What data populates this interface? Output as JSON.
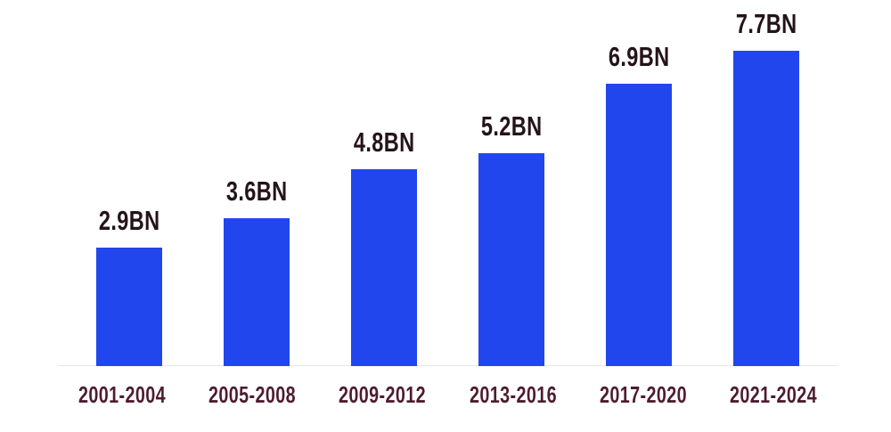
{
  "chart_data": {
    "type": "bar",
    "title": "",
    "categories": [
      "2001-2004",
      "2005-2008",
      "2009-2012",
      "2013-2016",
      "2017-2020",
      "2021-2024"
    ],
    "values": [
      2.9,
      3.6,
      4.8,
      5.2,
      6.9,
      7.7
    ],
    "value_labels": [
      "2.9BN",
      "3.6BN",
      "4.8BN",
      "5.2BN",
      "6.9BN",
      "7.7BN"
    ],
    "unit": "BN",
    "xlabel": "",
    "ylabel": "",
    "ylim": [
      0,
      8
    ],
    "grid": false,
    "legend": false,
    "axis_line": "bottom-only",
    "colors": {
      "bar": "#2246ee",
      "value_label": "#241318",
      "category_label": "#4e1c30",
      "baseline": "#e5e5e5",
      "background": "#ffffff"
    }
  }
}
